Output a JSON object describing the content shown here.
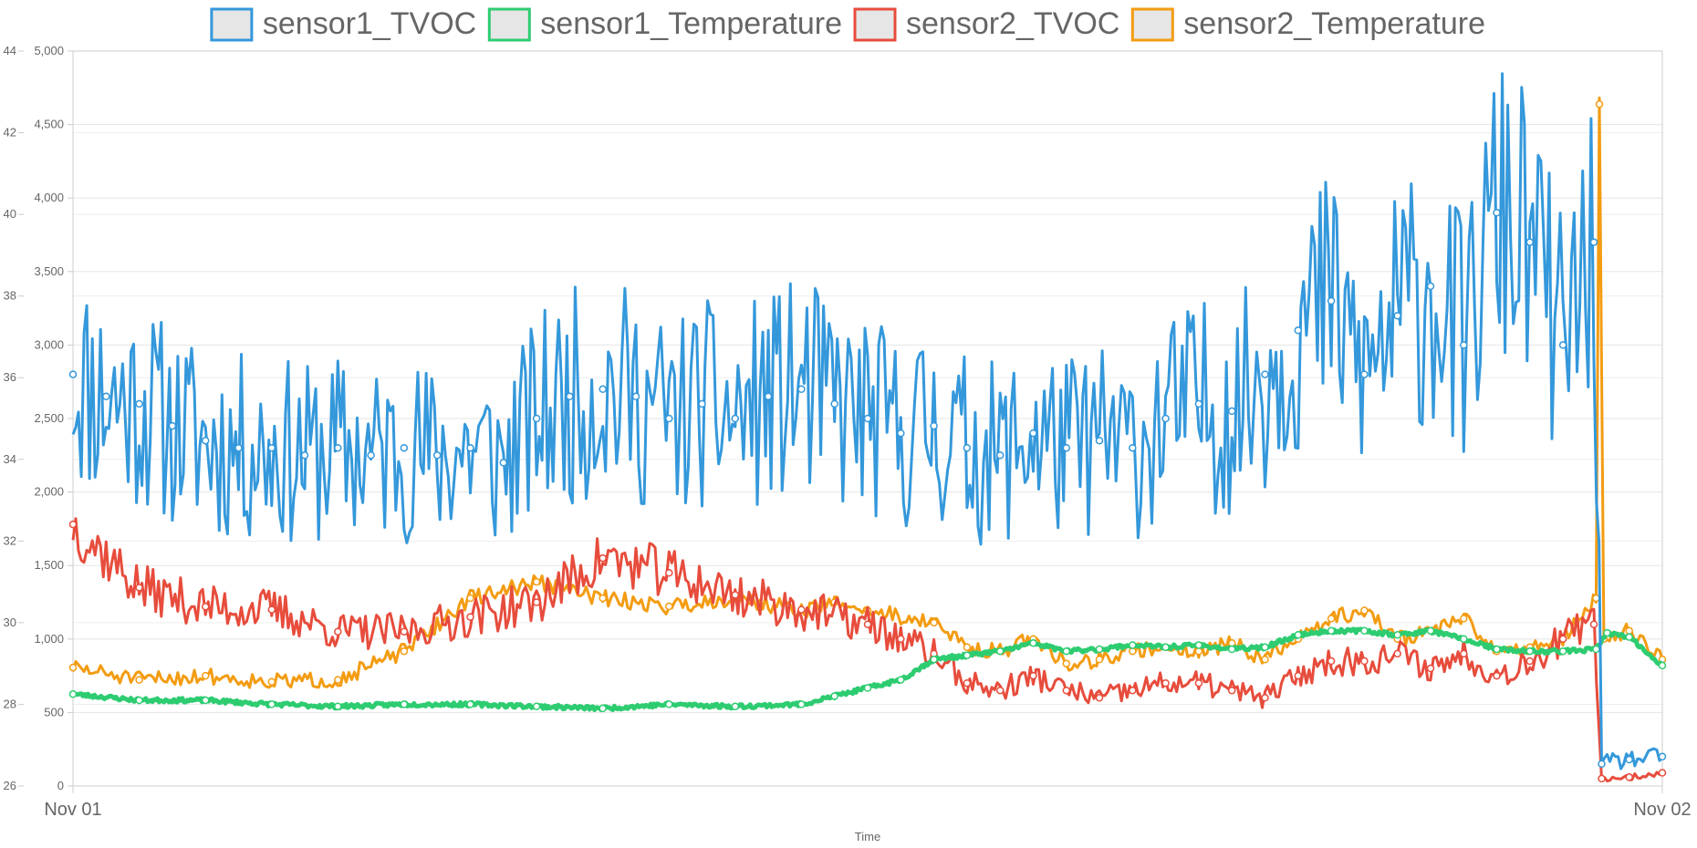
{
  "chart_data": {
    "type": "line",
    "xlabel": "Time",
    "x_ticks": [
      "Nov 01",
      "Nov 02"
    ],
    "x_range": [
      "Nov 01 00:00",
      "Nov 02 00:00"
    ],
    "y_left": {
      "range": [
        0,
        5000
      ],
      "ticks": [
        "0",
        "500",
        "1,000",
        "1,500",
        "2,000",
        "2,500",
        "3,000",
        "3,500",
        "4,000",
        "4,500",
        "5,000"
      ]
    },
    "y_far_left": {
      "range": [
        26,
        44
      ],
      "ticks": [
        "26",
        "28",
        "30",
        "32",
        "34",
        "36",
        "38",
        "40",
        "42",
        "44"
      ]
    },
    "grid": true,
    "legend_position": "top",
    "series": [
      {
        "name": "sensor1_TVOC",
        "axis": "left",
        "color": "#3498db",
        "points": [
          [
            "00:00",
            2800
          ],
          [
            "00:30",
            2650
          ],
          [
            "01:00",
            2600
          ],
          [
            "01:30",
            2450
          ],
          [
            "02:00",
            2350
          ],
          [
            "02:30",
            2300
          ],
          [
            "03:00",
            2300
          ],
          [
            "03:30",
            2250
          ],
          [
            "04:00",
            2300
          ],
          [
            "04:30",
            2250
          ],
          [
            "05:00",
            2300
          ],
          [
            "05:30",
            2250
          ],
          [
            "06:00",
            2300
          ],
          [
            "06:30",
            2200
          ],
          [
            "07:00",
            2500
          ],
          [
            "07:30",
            2650
          ],
          [
            "08:00",
            2700
          ],
          [
            "08:30",
            2650
          ],
          [
            "09:00",
            2500
          ],
          [
            "09:30",
            2600
          ],
          [
            "10:00",
            2500
          ],
          [
            "10:30",
            2650
          ],
          [
            "11:00",
            2700
          ],
          [
            "11:30",
            2600
          ],
          [
            "12:00",
            2500
          ],
          [
            "12:30",
            2400
          ],
          [
            "13:00",
            2450
          ],
          [
            "13:30",
            2300
          ],
          [
            "14:00",
            2250
          ],
          [
            "14:30",
            2400
          ],
          [
            "15:00",
            2300
          ],
          [
            "15:30",
            2350
          ],
          [
            "16:00",
            2300
          ],
          [
            "16:30",
            2500
          ],
          [
            "17:00",
            2600
          ],
          [
            "17:30",
            2550
          ],
          [
            "18:00",
            2800
          ],
          [
            "18:30",
            3100
          ],
          [
            "19:00",
            3300
          ],
          [
            "19:30",
            2800
          ],
          [
            "20:00",
            3200
          ],
          [
            "20:30",
            3400
          ],
          [
            "21:00",
            3000
          ],
          [
            "21:30",
            3900
          ],
          [
            "22:00",
            3700
          ],
          [
            "22:30",
            3000
          ],
          [
            "22:58",
            3700
          ],
          [
            "23:05",
            150
          ],
          [
            "23:30",
            180
          ],
          [
            "24:00",
            200
          ]
        ]
      },
      {
        "name": "sensor1_Temperature",
        "axis": "far_left",
        "color": "#2ecc71",
        "points": [
          [
            "00:00",
            28.25
          ],
          [
            "01:00",
            28.1
          ],
          [
            "02:00",
            28.1
          ],
          [
            "03:00",
            28.0
          ],
          [
            "04:00",
            27.95
          ],
          [
            "05:00",
            28.0
          ],
          [
            "06:00",
            28.0
          ],
          [
            "07:00",
            27.95
          ],
          [
            "08:00",
            27.9
          ],
          [
            "09:00",
            28.0
          ],
          [
            "10:00",
            27.95
          ],
          [
            "11:00",
            28.0
          ],
          [
            "11:30",
            28.2
          ],
          [
            "12:00",
            28.4
          ],
          [
            "12:30",
            28.6
          ],
          [
            "13:00",
            29.1
          ],
          [
            "13:30",
            29.2
          ],
          [
            "14:00",
            29.3
          ],
          [
            "14:30",
            29.5
          ],
          [
            "15:00",
            29.3
          ],
          [
            "15:30",
            29.35
          ],
          [
            "16:00",
            29.45
          ],
          [
            "16:30",
            29.4
          ],
          [
            "17:00",
            29.45
          ],
          [
            "17:30",
            29.35
          ],
          [
            "18:00",
            29.4
          ],
          [
            "18:30",
            29.7
          ],
          [
            "19:00",
            29.8
          ],
          [
            "19:30",
            29.8
          ],
          [
            "20:00",
            29.7
          ],
          [
            "20:30",
            29.8
          ],
          [
            "21:00",
            29.6
          ],
          [
            "21:30",
            29.35
          ],
          [
            "22:00",
            29.3
          ],
          [
            "22:30",
            29.3
          ],
          [
            "23:00",
            29.35
          ],
          [
            "23:10",
            29.75
          ],
          [
            "23:30",
            29.65
          ],
          [
            "24:00",
            28.95
          ]
        ]
      },
      {
        "name": "sensor2_TVOC",
        "axis": "left",
        "color": "#e74c3c",
        "points": [
          [
            "00:00",
            1780
          ],
          [
            "01:00",
            1350
          ],
          [
            "02:00",
            1220
          ],
          [
            "03:00",
            1200
          ],
          [
            "04:00",
            1050
          ],
          [
            "05:00",
            1050
          ],
          [
            "06:00",
            1150
          ],
          [
            "07:00",
            1250
          ],
          [
            "08:00",
            1550
          ],
          [
            "09:00",
            1450
          ],
          [
            "10:00",
            1300
          ],
          [
            "11:00",
            1200
          ],
          [
            "12:00",
            1100
          ],
          [
            "12:30",
            1000
          ],
          [
            "13:00",
            900
          ],
          [
            "13:30",
            700
          ],
          [
            "14:00",
            650
          ],
          [
            "14:30",
            750
          ],
          [
            "15:00",
            650
          ],
          [
            "15:30",
            600
          ],
          [
            "16:00",
            650
          ],
          [
            "16:30",
            700
          ],
          [
            "17:00",
            700
          ],
          [
            "17:30",
            650
          ],
          [
            "18:00",
            600
          ],
          [
            "18:30",
            750
          ],
          [
            "19:00",
            850
          ],
          [
            "19:30",
            850
          ],
          [
            "20:00",
            900
          ],
          [
            "20:30",
            800
          ],
          [
            "21:00",
            900
          ],
          [
            "21:30",
            750
          ],
          [
            "22:00",
            850
          ],
          [
            "22:30",
            1000
          ],
          [
            "22:58",
            1100
          ],
          [
            "23:05",
            50
          ],
          [
            "23:30",
            60
          ],
          [
            "24:00",
            90
          ]
        ]
      },
      {
        "name": "sensor2_Temperature",
        "axis": "far_left",
        "color": "#f39c12",
        "points": [
          [
            "00:00",
            28.9
          ],
          [
            "01:00",
            28.6
          ],
          [
            "02:00",
            28.7
          ],
          [
            "03:00",
            28.55
          ],
          [
            "04:00",
            28.6
          ],
          [
            "05:00",
            29.3
          ],
          [
            "06:00",
            30.6
          ],
          [
            "07:00",
            31.0
          ],
          [
            "08:00",
            30.6
          ],
          [
            "09:00",
            30.4
          ],
          [
            "10:00",
            30.6
          ],
          [
            "11:00",
            30.3
          ],
          [
            "11:30",
            30.5
          ],
          [
            "12:00",
            30.3
          ],
          [
            "13:00",
            30.0
          ],
          [
            "13:30",
            29.4
          ],
          [
            "14:00",
            29.3
          ],
          [
            "14:30",
            29.6
          ],
          [
            "15:00",
            29.0
          ],
          [
            "15:30",
            29.1
          ],
          [
            "16:00",
            29.3
          ],
          [
            "16:30",
            29.4
          ],
          [
            "17:00",
            29.3
          ],
          [
            "17:30",
            29.5
          ],
          [
            "18:00",
            29.1
          ],
          [
            "18:30",
            29.6
          ],
          [
            "19:00",
            30.1
          ],
          [
            "19:30",
            30.3
          ],
          [
            "20:00",
            29.6
          ],
          [
            "20:30",
            29.8
          ],
          [
            "21:00",
            30.1
          ],
          [
            "21:30",
            29.3
          ],
          [
            "22:00",
            29.4
          ],
          [
            "22:30",
            29.6
          ],
          [
            "23:00",
            30.6
          ],
          [
            "23:03",
            42.7
          ],
          [
            "23:07",
            29.6
          ],
          [
            "23:30",
            29.8
          ],
          [
            "24:00",
            29.1
          ]
        ]
      }
    ]
  }
}
